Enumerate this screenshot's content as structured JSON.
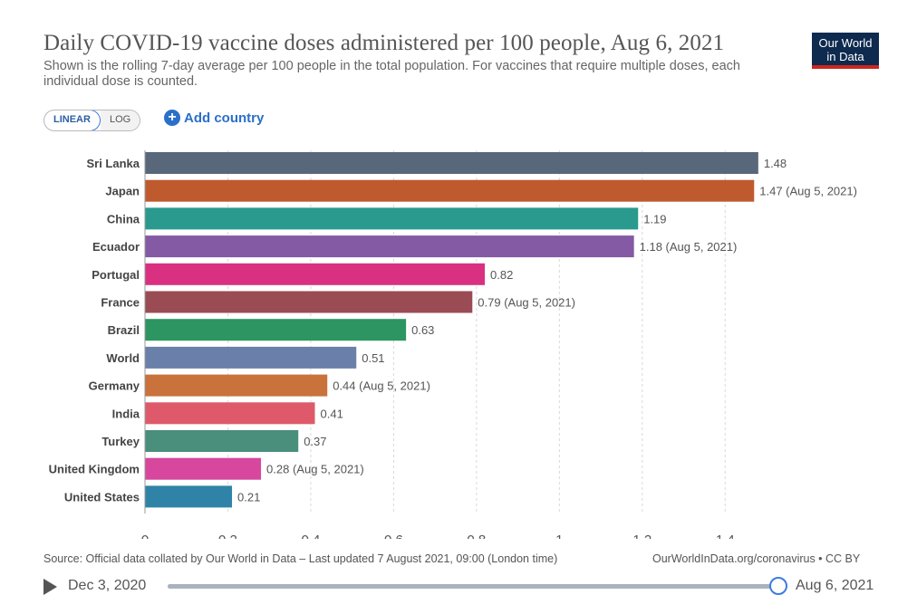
{
  "header": {
    "title": "Daily COVID-19 vaccine doses administered per 100 people, Aug 6, 2021",
    "subtitle": "Shown is the rolling 7-day average per 100 people in the total population. For vaccines that require multiple doses, each individual dose is counted.",
    "logo_line1": "Our World",
    "logo_line2": "in Data"
  },
  "controls": {
    "linear_label": "LINEAR",
    "log_label": "LOG",
    "add_country_label": "Add country",
    "selected_scale": "linear"
  },
  "chart_data": {
    "type": "bar",
    "orientation": "horizontal",
    "categories": [
      "Sri Lanka",
      "Japan",
      "China",
      "Ecuador",
      "Portugal",
      "France",
      "Brazil",
      "World",
      "Germany",
      "India",
      "Turkey",
      "United Kingdom",
      "United States"
    ],
    "values": [
      1.48,
      1.47,
      1.19,
      1.18,
      0.82,
      0.79,
      0.63,
      0.51,
      0.44,
      0.41,
      0.37,
      0.28,
      0.21
    ],
    "value_labels": [
      "1.48",
      "1.47 (Aug 5, 2021)",
      "1.19",
      "1.18 (Aug 5, 2021)",
      "0.82",
      "0.79 (Aug 5, 2021)",
      "0.63",
      "0.51",
      "0.44 (Aug 5, 2021)",
      "0.41",
      "0.37",
      "0.28 (Aug 5, 2021)",
      "0.21"
    ],
    "colors": [
      "#58677a",
      "#bf5a2f",
      "#2a9a8e",
      "#835aa3",
      "#d93082",
      "#9a4b54",
      "#2c9561",
      "#6a80ab",
      "#c9723b",
      "#de5a6a",
      "#4a8e7c",
      "#d6479d",
      "#2f83a7"
    ],
    "xlim": [
      0,
      1.5
    ],
    "xticks": [
      0,
      0.2,
      0.4,
      0.6,
      0.8,
      1,
      1.2,
      1.4
    ],
    "xtick_labels": [
      "0",
      "0.2",
      "0.4",
      "0.6",
      "0.8",
      "1",
      "1.2",
      "1.4"
    ],
    "grid": true
  },
  "footer": {
    "source": "Source: Official data collated by Our World in Data – Last updated 7 August 2021, 09:00 (London time)",
    "license": "OurWorldInData.org/coronavirus • CC BY"
  },
  "timeline": {
    "start_date": "Dec 3, 2020",
    "end_date": "Aug 6, 2021",
    "position": 1.0
  }
}
